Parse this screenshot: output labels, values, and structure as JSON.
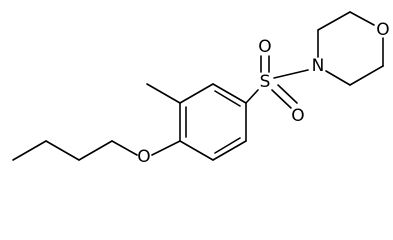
{
  "atoms": [
    {
      "label": "O"
    },
    {
      "label": "S"
    },
    {
      "label": "O"
    },
    {
      "label": "O"
    },
    {
      "label": "N"
    },
    {
      "label": "O"
    }
  ]
}
